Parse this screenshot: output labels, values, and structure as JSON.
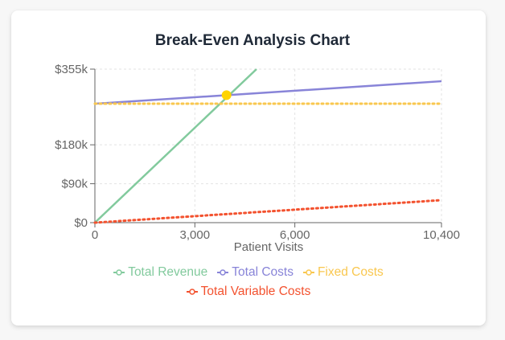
{
  "chart_data": {
    "type": "line",
    "title": "Break-Even Analysis Chart",
    "xlabel": "Patient Visits",
    "ylabel": "",
    "xlim": [
      0,
      10400
    ],
    "ylim": [
      0,
      355000
    ],
    "x_ticks": [
      0,
      3000,
      6000,
      10400
    ],
    "x_tick_labels": [
      "0",
      "3,000",
      "6,000",
      "10,400"
    ],
    "y_ticks": [
      0,
      90000,
      180000,
      355000
    ],
    "y_tick_labels": [
      "$0",
      "$90k",
      "$180k",
      "$355k"
    ],
    "grid": true,
    "legend_position": "bottom",
    "series": [
      {
        "name": "Total Revenue",
        "color": "#82ca9d",
        "style": "solid",
        "x": [
          0,
          4850
        ],
        "values": [
          0,
          355000
        ]
      },
      {
        "name": "Total Costs",
        "color": "#8884d8",
        "style": "solid",
        "x": [
          0,
          10400
        ],
        "values": [
          275000,
          327000
        ]
      },
      {
        "name": "Fixed Costs",
        "color": "#f9c74f",
        "style": "dotted",
        "x": [
          0,
          10400
        ],
        "values": [
          275000,
          275000
        ]
      },
      {
        "name": "Total Variable Costs",
        "color": "#f3522f",
        "style": "dotted",
        "x": [
          0,
          10400
        ],
        "values": [
          0,
          52000
        ]
      }
    ],
    "break_even_point": {
      "x": 3950,
      "y": 294750,
      "color": "#ffd400"
    }
  }
}
